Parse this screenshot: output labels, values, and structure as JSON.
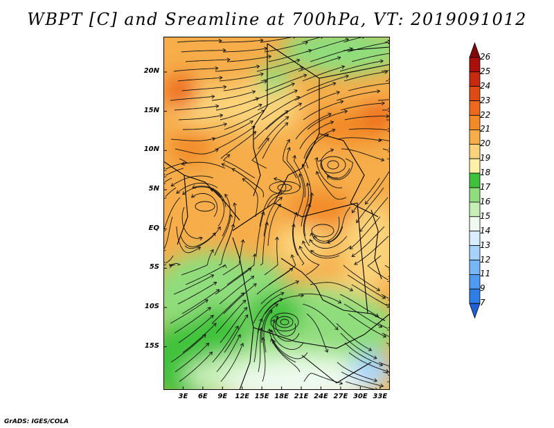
{
  "title": "WBPT [C] and Sreamline at 700hPa, VT: 2019091012",
  "credit": "GrADS: IGES/COLA",
  "map": {
    "lat_range": [
      -20.5,
      24.5
    ],
    "lon_range": [
      0,
      34.5
    ],
    "lat_labels": [
      {
        "lat": 20,
        "text": "20N"
      },
      {
        "lat": 15,
        "text": "15N"
      },
      {
        "lat": 10,
        "text": "10N"
      },
      {
        "lat": 5,
        "text": "5N"
      },
      {
        "lat": 0,
        "text": "EQ"
      },
      {
        "lat": -5,
        "text": "5S"
      },
      {
        "lat": -10,
        "text": "10S"
      },
      {
        "lat": -15,
        "text": "15S"
      }
    ],
    "lon_labels": [
      {
        "lon": 3,
        "text": "3E"
      },
      {
        "lon": 6,
        "text": "6E"
      },
      {
        "lon": 9,
        "text": "9E"
      },
      {
        "lon": 12,
        "text": "12E"
      },
      {
        "lon": 15,
        "text": "15E"
      },
      {
        "lon": 18,
        "text": "18E"
      },
      {
        "lon": 21,
        "text": "21E"
      },
      {
        "lon": 24,
        "text": "24E"
      },
      {
        "lon": 27,
        "text": "27E"
      },
      {
        "lon": 30,
        "text": "30E"
      },
      {
        "lon": 33,
        "text": "33E"
      }
    ]
  },
  "colorbar": {
    "levels": [
      "7",
      "9",
      "11",
      "12",
      "13",
      "14",
      "15",
      "16",
      "17",
      "18",
      "19",
      "20",
      "21",
      "22",
      "23",
      "24",
      "25",
      "26"
    ],
    "colors": [
      "#1f5fd6",
      "#2f7ee8",
      "#4f9bf2",
      "#78b7f7",
      "#a7d3fb",
      "#d8eefe",
      "#eefaef",
      "#c8efb8",
      "#8fdd7c",
      "#3fc23b",
      "#fff1a8",
      "#fbd37a",
      "#f6ad4a",
      "#f28a28",
      "#ed6a1c",
      "#e04a14",
      "#c82a10",
      "#a8100c",
      "#800808"
    ]
  }
}
